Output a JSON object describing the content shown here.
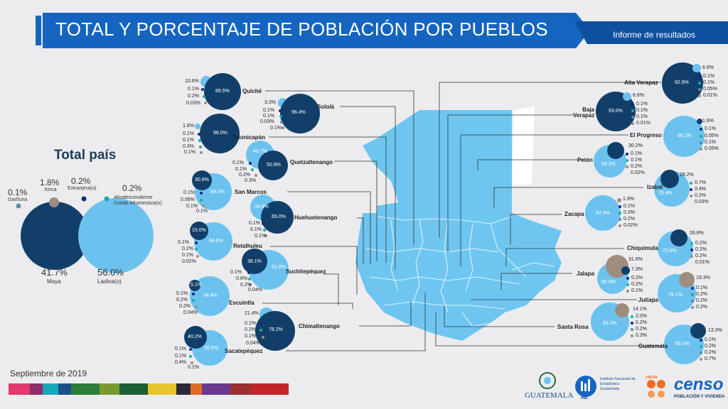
{
  "header": {
    "title": "TOTAL Y PORCENTAJE DE POBLACIÓN POR PUEBLOS",
    "subtitle": "Informe de  resultados"
  },
  "footer": {
    "date": "Septiembre de 2019"
  },
  "colors": {
    "maya": "#123f6a",
    "ladino": "#6cc2ee",
    "xinca": "#a08c7d",
    "garifuna": "#5e8ba6",
    "afro": "#1faaa0",
    "extranjera": "#0d2a8c",
    "header_blue": "#1565c0",
    "map": "#6ec6f0"
  },
  "total_pais": {
    "title": "Total país",
    "items": [
      {
        "key": "maya",
        "pct": "41.7%",
        "label": "Maya"
      },
      {
        "key": "ladino",
        "pct": "56.0%",
        "label": "Ladina(o)"
      },
      {
        "key": "garifuna",
        "pct": "0.1%",
        "label": "Garífuna"
      },
      {
        "key": "xinca",
        "pct": "1.8%",
        "label": "Xinca"
      },
      {
        "key": "extranjera",
        "pct": "0.2%",
        "label": "Extranjera(o)"
      },
      {
        "key": "afro",
        "pct": "0.2%",
        "label": "Afrodescendiente Creole Afromestiza(o)"
      }
    ]
  },
  "departments": [
    {
      "name": "Quiché",
      "big": "89.5%",
      "big_type": "maya",
      "small": [
        "10.6%",
        "0.1%",
        "0.2%",
        "0.03%"
      ]
    },
    {
      "name": "Sololá",
      "big": "96.4%",
      "big_type": "maya",
      "small": [
        "3.3%",
        "0.1%",
        "0.1%",
        "0.03%",
        "0.1%"
      ]
    },
    {
      "name": "Totonicapán",
      "big": "98.0%",
      "big_type": "maya",
      "small": [
        "1.8%",
        "0.1%",
        "0.1%",
        "0.3%",
        "0.1%"
      ]
    },
    {
      "name": "Quetzaltenango",
      "big": "50.9%",
      "big_type": "maya",
      "second": "48.7%",
      "small": [
        "0.1%",
        "0.1%",
        "0.2%",
        "0.3%"
      ]
    },
    {
      "name": "San Marcos",
      "big": "69.0%",
      "big_type": "ladino",
      "second": "30.8%",
      "small": [
        "0.1%",
        "0.06%",
        "0.1%",
        "0.1%"
      ]
    },
    {
      "name": "Huehuetenango",
      "big": "65.0%",
      "big_type": "maya",
      "second": "34.8%",
      "small": [
        "0.1%",
        "0.1%",
        "0.1%"
      ]
    },
    {
      "name": "Retalhuleu",
      "big": "84.6%",
      "big_type": "ladino",
      "second": "15.0%",
      "small": [
        "0.1%",
        "0.2%",
        "0.1%",
        "0.02%"
      ]
    },
    {
      "name": "Suchitepéquez",
      "big": "61.0%",
      "big_type": "ladino",
      "second": "38.1%",
      "small": [
        "0.1%",
        "0.6%",
        "0.2%",
        "0.04%"
      ]
    },
    {
      "name": "Escuintla",
      "big": "94.4%",
      "big_type": "ladino",
      "second": "5.1%",
      "small": [
        "0.1%",
        "0.2%",
        "0.2%",
        "0.04%"
      ]
    },
    {
      "name": "Chimaltenango",
      "big": "78.2%",
      "big_type": "maya",
      "second": "21.4%",
      "small": [
        "0.1%",
        "0.2%",
        "0.1%",
        "0.04%"
      ]
    },
    {
      "name": "Sacatepéquez",
      "big": "59.0%",
      "big_type": "ladino",
      "second": "40.2%",
      "small": [
        "0.1%",
        "0.1%",
        "0.4%",
        "0.1%"
      ]
    },
    {
      "name": "Alta Verapaz",
      "big": "92.9%",
      "big_type": "maya",
      "small": [
        "6.8%",
        "0.1%",
        "0.1%",
        "0.05%",
        "0.01%"
      ]
    },
    {
      "name": "Baja Verapaz",
      "big": "93.0%",
      "big_type": "maya",
      "small": [
        "6.8%",
        "0.1%",
        "0.1%",
        "0.1%",
        "0.01%"
      ]
    },
    {
      "name": "El Progreso",
      "big": "98.2%",
      "big_type": "ladino",
      "small": [
        "1.6%",
        "0.1%",
        "0.05%",
        "0.1%",
        "0.05%"
      ]
    },
    {
      "name": "Petén",
      "big": "69.3%",
      "big_type": "ladino",
      "second": "30.2%",
      "small": [
        "0.1%",
        "0.1%",
        "0.2%",
        "0.02%"
      ]
    },
    {
      "name": "Izabal",
      "big": "70.4%",
      "big_type": "ladino",
      "second": "28.2%",
      "small": [
        "0.7%",
        "0.4%",
        "0.2%",
        "0.03%"
      ]
    },
    {
      "name": "Zacapa",
      "big": "97.4%",
      "big_type": "ladino",
      "small": [
        "1.9%",
        "0.1%",
        "0.3%",
        "0.2%",
        "0.02%"
      ]
    },
    {
      "name": "Chiquimula",
      "big": "72.6%",
      "big_type": "ladino",
      "second": "26.8%",
      "small": [
        "0.2%",
        "0.2%",
        "0.2%",
        "0.01%"
      ]
    },
    {
      "name": "Jalapa",
      "big": "60.5%",
      "big_type": "ladino",
      "second": "31.6%",
      "third": "7.3%",
      "small": [
        "0.2%",
        "0.2%",
        "0.1%"
      ]
    },
    {
      "name": "Jutiapa",
      "big": "79.1%",
      "big_type": "ladino",
      "second": "19.3%",
      "small": [
        "0.1%",
        "0.2%",
        "0.2%",
        "0.2%"
      ]
    },
    {
      "name": "Santa Rosa",
      "big": "83.2%",
      "big_type": "ladino",
      "second": "14.1%",
      "small": [
        "2.0%",
        "0.2%",
        "0.2%",
        "0.3%"
      ]
    },
    {
      "name": "Guatemala",
      "big": "85.5%",
      "big_type": "ladino",
      "second": "13.3%",
      "small": [
        "0.1%",
        "0.2%",
        "0.2%",
        "0.7%"
      ]
    }
  ],
  "logos": {
    "gobierno": "GUATEMALA",
    "ine": "INE",
    "ine_text": "Instituto Nacional de Estadística Guatemala",
    "unfpa": "UNFPA",
    "censo": "censo",
    "censo_sub": "POBLACIÓN Y VIVIENDA"
  }
}
